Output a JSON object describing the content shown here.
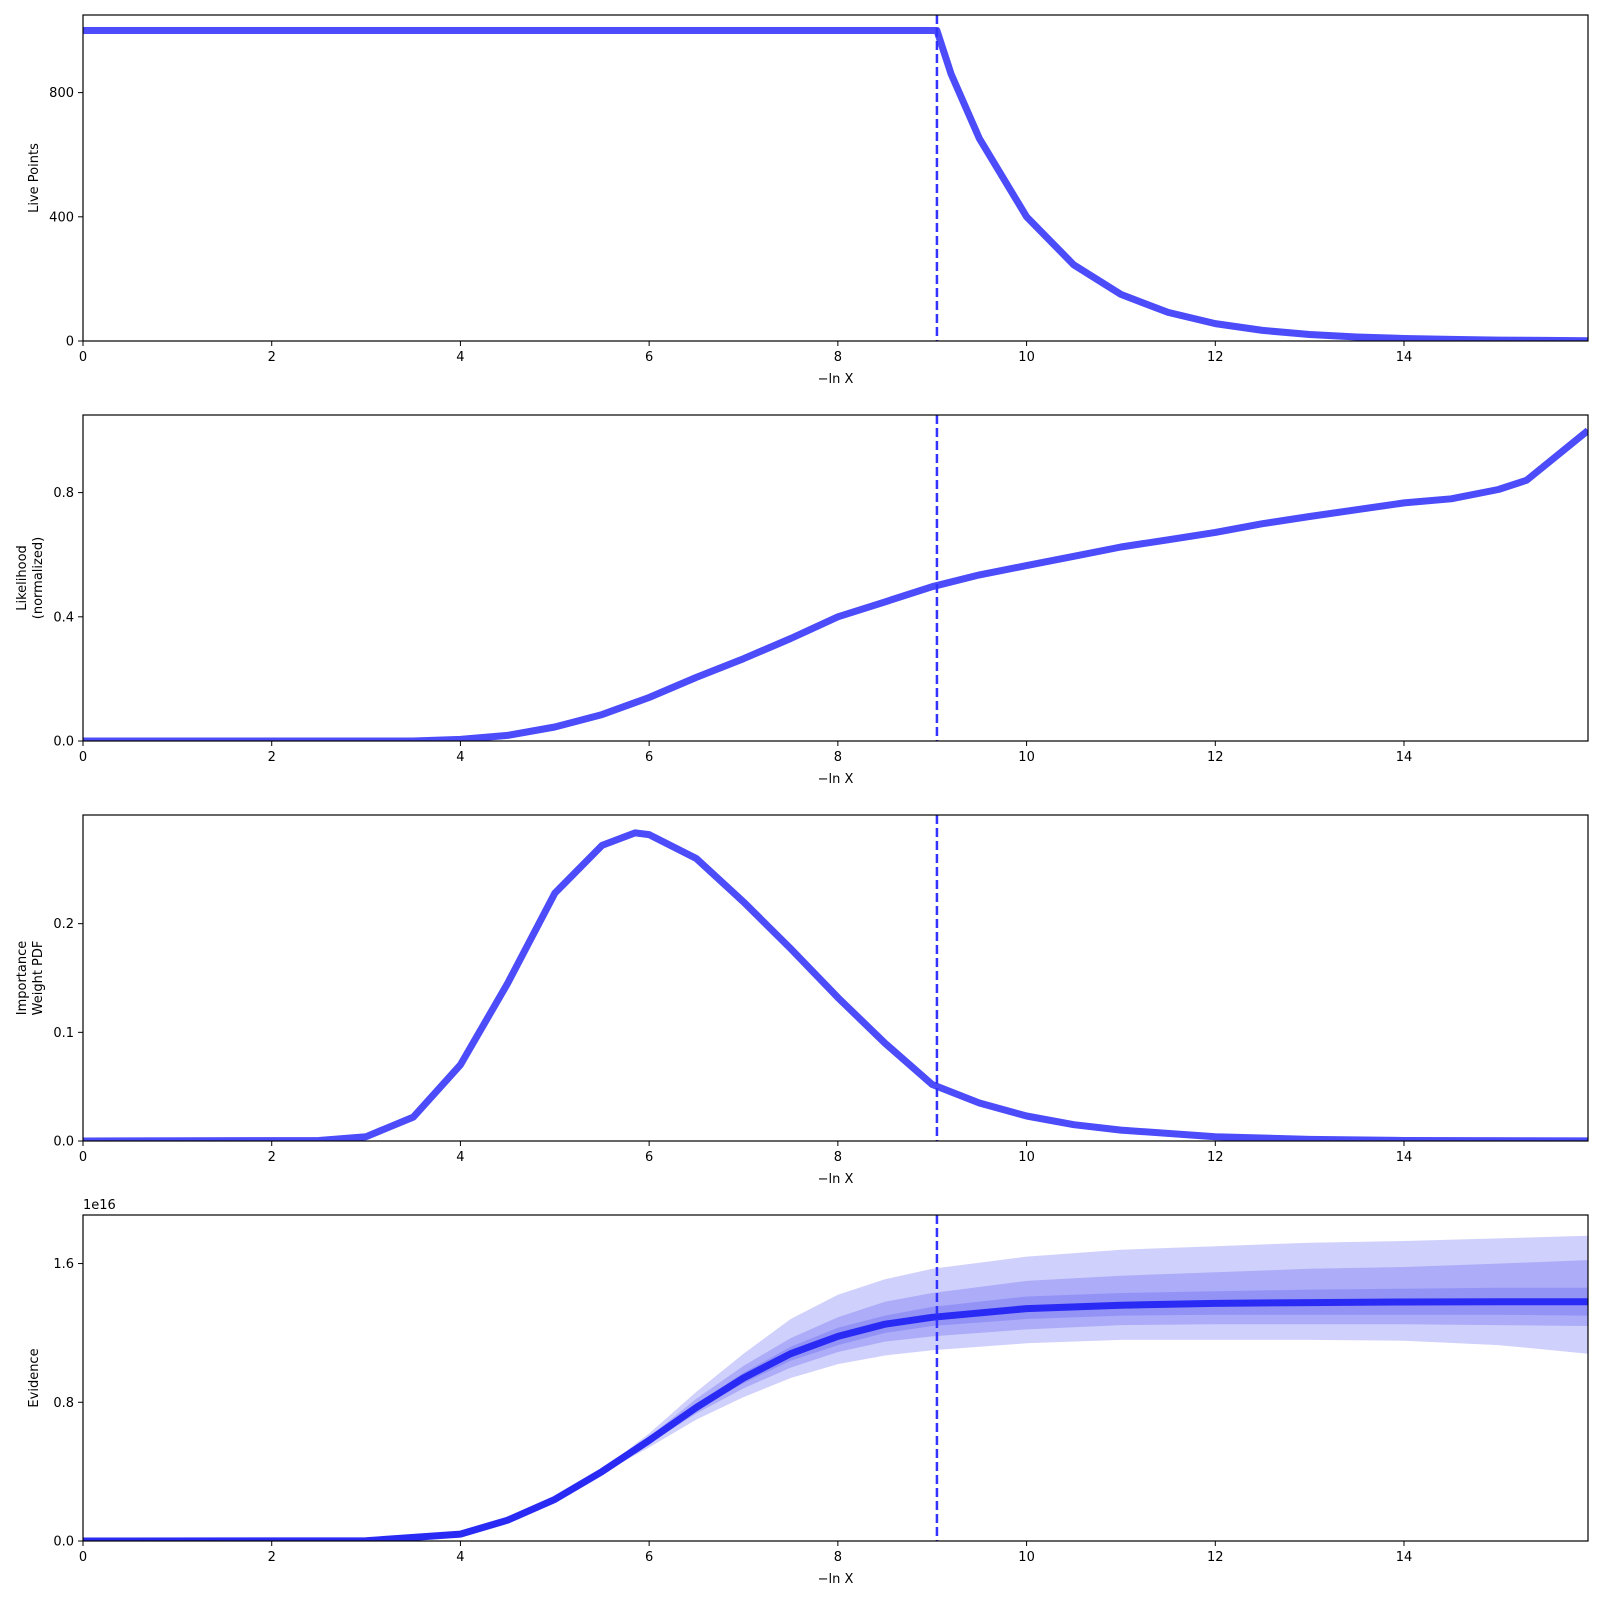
{
  "chart_data": [
    {
      "type": "line",
      "ylabel": [
        "Live Points"
      ],
      "xlabel": "−ln X",
      "xlim": [
        0,
        15.95
      ],
      "ylim": [
        0,
        1050
      ],
      "xticks": [
        0,
        2,
        4,
        6,
        8,
        10,
        12,
        14
      ],
      "yticks": [
        0,
        400,
        800
      ],
      "ytick_labels": [
        "0",
        "400",
        "800"
      ],
      "vline_x": 9.05,
      "series": [
        {
          "x": [
            0,
            9.05,
            9.2,
            9.5,
            10,
            10.5,
            11,
            11.5,
            12,
            12.5,
            13,
            13.5,
            14,
            14.5,
            15,
            15.5,
            15.95
          ],
          "y": [
            1000,
            1000,
            860,
            652,
            400,
            245,
            150,
            92,
            56,
            34,
            21,
            13,
            8,
            5,
            3,
            2,
            1
          ]
        }
      ]
    },
    {
      "type": "line",
      "ylabel": [
        "Likelihood",
        "(normalized)"
      ],
      "xlabel": "−ln X",
      "xlim": [
        0,
        15.95
      ],
      "ylim": [
        0,
        1.05
      ],
      "xticks": [
        0,
        2,
        4,
        6,
        8,
        10,
        12,
        14
      ],
      "yticks": [
        0,
        0.4,
        0.8
      ],
      "ytick_labels": [
        "0.0",
        "0.4",
        "0.8"
      ],
      "vline_x": 9.05,
      "series": [
        {
          "x": [
            0,
            3.5,
            4.0,
            4.5,
            5.0,
            5.5,
            6.0,
            6.5,
            7.0,
            7.5,
            8.0,
            8.5,
            9.0,
            9.5,
            10.0,
            10.5,
            11.0,
            11.5,
            12.0,
            12.5,
            13.0,
            13.5,
            14.0,
            14.5,
            15.0,
            15.3,
            15.95
          ],
          "y": [
            0,
            0,
            0.005,
            0.018,
            0.045,
            0.085,
            0.14,
            0.205,
            0.265,
            0.33,
            0.4,
            0.448,
            0.497,
            0.535,
            0.565,
            0.595,
            0.625,
            0.648,
            0.672,
            0.7,
            0.723,
            0.745,
            0.767,
            0.78,
            0.81,
            0.84,
            1.0
          ]
        }
      ]
    },
    {
      "type": "line",
      "ylabel": [
        "Importance",
        "Weight PDF"
      ],
      "xlabel": "−ln X",
      "xlim": [
        0,
        15.95
      ],
      "ylim": [
        0,
        0.3
      ],
      "xticks": [
        0,
        2,
        4,
        6,
        8,
        10,
        12,
        14
      ],
      "yticks": [
        0,
        0.1,
        0.2
      ],
      "ytick_labels": [
        "0.0",
        "0.1",
        "0.2"
      ],
      "vline_x": 9.05,
      "series": [
        {
          "x": [
            0,
            2.5,
            3.0,
            3.5,
            4.0,
            4.5,
            5.0,
            5.5,
            5.85,
            6.0,
            6.5,
            7.0,
            7.5,
            8.0,
            8.5,
            9.0,
            9.5,
            10.0,
            10.5,
            11.0,
            12.0,
            13.0,
            14.0,
            15.95
          ],
          "y": [
            0,
            0.0005,
            0.004,
            0.022,
            0.07,
            0.145,
            0.228,
            0.272,
            0.2835,
            0.282,
            0.26,
            0.22,
            0.177,
            0.132,
            0.09,
            0.052,
            0.035,
            0.023,
            0.015,
            0.01,
            0.004,
            0.0015,
            0.0005,
            0.0001
          ]
        }
      ]
    },
    {
      "type": "area",
      "ylabel": [
        "Evidence"
      ],
      "xlabel": "−ln X",
      "offset_text": "1e16",
      "xlim": [
        0,
        15.95
      ],
      "ylim": [
        0,
        1.88
      ],
      "xticks": [
        0,
        2,
        4,
        6,
        8,
        10,
        12,
        14
      ],
      "yticks": [
        0,
        0.8,
        1.6
      ],
      "ytick_labels": [
        "0.0",
        "0.8",
        "1.6"
      ],
      "vline_x": 9.05,
      "series": [
        {
          "x": [
            0,
            3.0,
            4.0,
            4.5,
            5.0,
            5.5,
            6.0,
            6.5,
            7.0,
            7.5,
            8.0,
            8.5,
            9.0,
            10.0,
            11.0,
            12.0,
            13.0,
            14.0,
            15.0,
            15.95
          ],
          "y": [
            0,
            0.002,
            0.04,
            0.12,
            0.24,
            0.4,
            0.58,
            0.77,
            0.94,
            1.08,
            1.18,
            1.25,
            1.29,
            1.34,
            1.36,
            1.37,
            1.375,
            1.378,
            1.38,
            1.38
          ]
        }
      ],
      "bands": [
        {
          "lower": [
            0,
            0.002,
            0.04,
            0.12,
            0.24,
            0.39,
            0.54,
            0.7,
            0.83,
            0.94,
            1.02,
            1.07,
            1.1,
            1.14,
            1.16,
            1.16,
            1.16,
            1.155,
            1.13,
            1.08
          ],
          "upper": [
            0,
            0.002,
            0.04,
            0.125,
            0.25,
            0.41,
            0.62,
            0.86,
            1.08,
            1.28,
            1.42,
            1.51,
            1.57,
            1.64,
            1.68,
            1.7,
            1.72,
            1.73,
            1.745,
            1.76
          ]
        },
        {
          "lower": [
            0,
            0.002,
            0.04,
            0.12,
            0.24,
            0.395,
            0.56,
            0.735,
            0.88,
            1.0,
            1.09,
            1.15,
            1.18,
            1.22,
            1.245,
            1.25,
            1.25,
            1.25,
            1.245,
            1.24
          ],
          "upper": [
            0,
            0.002,
            0.04,
            0.122,
            0.245,
            0.405,
            0.6,
            0.82,
            1.01,
            1.17,
            1.29,
            1.38,
            1.43,
            1.5,
            1.53,
            1.55,
            1.57,
            1.58,
            1.6,
            1.62
          ]
        },
        {
          "lower": [
            0,
            0.002,
            0.04,
            0.12,
            0.24,
            0.398,
            0.57,
            0.755,
            0.91,
            1.04,
            1.13,
            1.2,
            1.24,
            1.28,
            1.3,
            1.305,
            1.305,
            1.305,
            1.305,
            1.3
          ],
          "upper": [
            0,
            0.002,
            0.04,
            0.12,
            0.242,
            0.402,
            0.59,
            0.79,
            0.97,
            1.12,
            1.23,
            1.3,
            1.35,
            1.41,
            1.43,
            1.44,
            1.45,
            1.455,
            1.46,
            1.46
          ]
        }
      ]
    }
  ],
  "colors": {
    "line": "#4c4cfa",
    "evidence_line": "#2a2af5",
    "vline": "#3333ff",
    "band_outer": "#c8c8fc",
    "band_mid": "#a6a6f8",
    "band_inner": "#8e8ef6"
  }
}
